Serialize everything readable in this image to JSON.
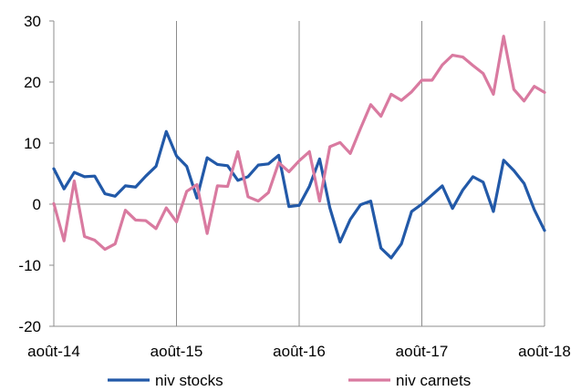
{
  "chart_data": {
    "type": "line",
    "title": "",
    "xlabel": "",
    "ylabel": "",
    "x_tick_labels": [
      "août-14",
      "août-15",
      "août-16",
      "août-17",
      "août-18"
    ],
    "x_range": [
      0,
      48
    ],
    "ylim": [
      -20,
      30
    ],
    "y_ticks": [
      -20,
      -10,
      0,
      10,
      20,
      30
    ],
    "grid": "vertical",
    "legend": "bottom",
    "series": [
      {
        "name": "niv stocks",
        "color": "#2259a8",
        "values": [
          5.8,
          2.5,
          5.2,
          4.5,
          4.6,
          1.7,
          1.3,
          3.0,
          2.8,
          4.6,
          6.2,
          11.9,
          7.9,
          6.2,
          1.0,
          7.6,
          6.5,
          6.3,
          3.9,
          4.5,
          6.4,
          6.6,
          8.0,
          -0.4,
          -0.2,
          2.9,
          7.4,
          -0.6,
          -6.2,
          -2.5,
          -0.1,
          0.5,
          -7.2,
          -8.8,
          -6.5,
          -1.2,
          0.0,
          1.5,
          3.0,
          -0.7,
          2.3,
          4.5,
          3.6,
          -1.2,
          7.2,
          5.5,
          3.4,
          -0.9,
          -4.3
        ]
      },
      {
        "name": "niv carnets",
        "color": "#d97aa0",
        "values": [
          0.1,
          -6.0,
          3.8,
          -5.3,
          -5.9,
          -7.4,
          -6.5,
          -1.0,
          -2.6,
          -2.7,
          -4.0,
          -0.6,
          -2.9,
          2.1,
          3.2,
          -4.8,
          3.0,
          2.9,
          8.6,
          1.2,
          0.5,
          1.9,
          6.8,
          5.3,
          7.1,
          8.6,
          0.5,
          9.4,
          10.1,
          8.3,
          12.4,
          16.3,
          14.4,
          18.0,
          17.0,
          18.4,
          20.3,
          20.3,
          22.8,
          24.4,
          24.1,
          22.7,
          21.4,
          18.0,
          27.5,
          18.8,
          16.9,
          19.3,
          18.3
        ]
      }
    ]
  }
}
